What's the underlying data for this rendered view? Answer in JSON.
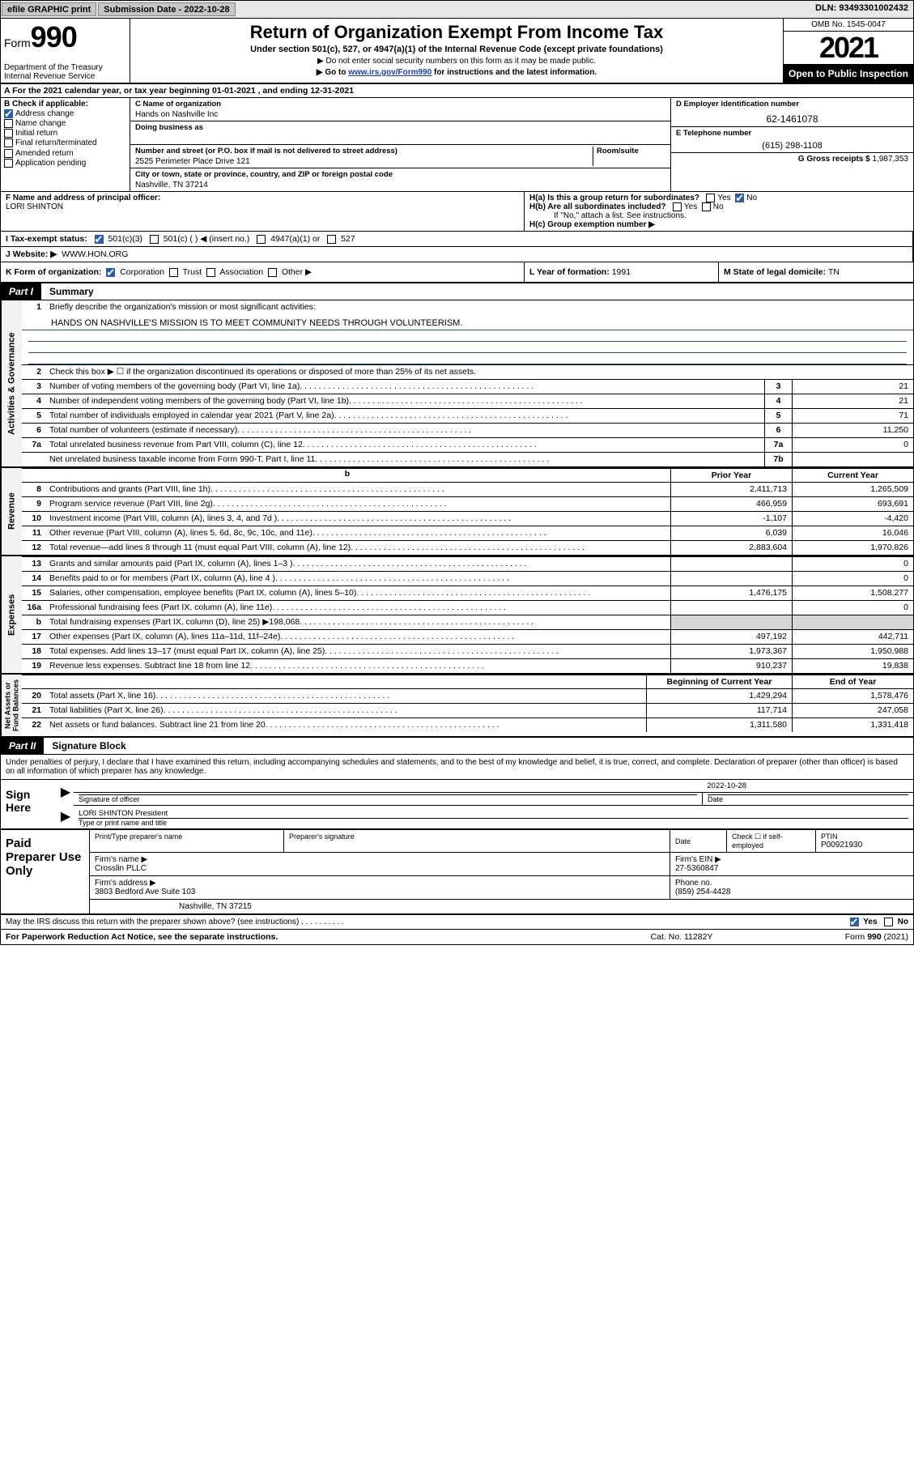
{
  "topstrip": {
    "efile": "efile GRAPHIC print",
    "subdate_lbl": "Submission Date - ",
    "subdate": "2022-10-28",
    "dln_lbl": "DLN: ",
    "dln": "93493301002432"
  },
  "header": {
    "form_word": "Form",
    "form_num": "990",
    "dept": "Department of the Treasury\nInternal Revenue Service",
    "title": "Return of Organization Exempt From Income Tax",
    "subtitle": "Under section 501(c), 527, or 4947(a)(1) of the Internal Revenue Code (except private foundations)",
    "instr1": "▶ Do not enter social security numbers on this form as it may be made public.",
    "instr2_pre": "▶ Go to ",
    "instr2_link": "www.irs.gov/Form990",
    "instr2_post": " for instructions and the latest information.",
    "omb": "OMB No. 1545-0047",
    "year": "2021",
    "otp": "Open to Public Inspection"
  },
  "A": {
    "text": "A For the 2021 calendar year, or tax year beginning 01-01-2021   , and ending 12-31-2021"
  },
  "B": {
    "hdr": "B Check if applicable:",
    "items": [
      {
        "lbl": "Address change",
        "chk": true
      },
      {
        "lbl": "Name change",
        "chk": false
      },
      {
        "lbl": "Initial return",
        "chk": false
      },
      {
        "lbl": "Final return/terminated",
        "chk": false
      },
      {
        "lbl": "Amended return",
        "chk": false
      },
      {
        "lbl": "Application pending",
        "chk": false
      }
    ]
  },
  "C": {
    "name_lbl": "C Name of organization",
    "name": "Hands on Nashville Inc",
    "dba_lbl": "Doing business as",
    "addr_lbl": "Number and street (or P.O. box if mail is not delivered to street address)",
    "room_lbl": "Room/suite",
    "addr": "2525 Perimeter Place Drive 121",
    "city_lbl": "City or town, state or province, country, and ZIP or foreign postal code",
    "city": "Nashville, TN  37214"
  },
  "D": {
    "lbl": "D Employer identification number",
    "val": "62-1461078"
  },
  "E": {
    "lbl": "E Telephone number",
    "val": "(615) 298-1108"
  },
  "G": {
    "lbl": "G Gross receipts $",
    "val": "1,987,353"
  },
  "F": {
    "lbl": "F  Name and address of principal officer:",
    "val": "LORI SHINTON"
  },
  "H": {
    "a": "H(a)  Is this a group return for subordinates?",
    "a_yes": "Yes",
    "a_no": "No",
    "b": "H(b)  Are all subordinates included?",
    "b_note": "If \"No,\" attach a list. See instructions.",
    "c": "H(c)  Group exemption number ▶"
  },
  "I": {
    "lbl": "I  Tax-exempt status:",
    "opts": [
      "501(c)(3)",
      "501(c) (   ) ◀ (insert no.)",
      "4947(a)(1) or",
      "527"
    ]
  },
  "J": {
    "lbl": "J  Website: ▶",
    "val": "WWW.HON.ORG"
  },
  "K": {
    "lbl": "K Form of organization:",
    "opts": [
      "Corporation",
      "Trust",
      "Association",
      "Other ▶"
    ]
  },
  "L": {
    "lbl": "L Year of formation: ",
    "val": "1991"
  },
  "M": {
    "lbl": "M State of legal domicile: ",
    "val": "TN"
  },
  "part1": {
    "tag": "Part I",
    "title": "Summary",
    "q1": "Briefly describe the organization's mission or most significant activities:",
    "mission": "HANDS ON NASHVILLE'S MISSION IS TO MEET COMMUNITY NEEDS THROUGH VOLUNTEERISM.",
    "q2": "Check this box ▶ ☐  if the organization discontinued its operations or disposed of more than 25% of its net assets.",
    "gov_rows": [
      {
        "n": "3",
        "t": "Number of voting members of the governing body (Part VI, line 1a)",
        "nn": "3",
        "v": "21"
      },
      {
        "n": "4",
        "t": "Number of independent voting members of the governing body (Part VI, line 1b)",
        "nn": "4",
        "v": "21"
      },
      {
        "n": "5",
        "t": "Total number of individuals employed in calendar year 2021 (Part V, line 2a)",
        "nn": "5",
        "v": "71"
      },
      {
        "n": "6",
        "t": "Total number of volunteers (estimate if necessary)",
        "nn": "6",
        "v": "11,250"
      },
      {
        "n": "7a",
        "t": "Total unrelated business revenue from Part VIII, column (C), line 12",
        "nn": "7a",
        "v": "0"
      },
      {
        "n": "",
        "t": "Net unrelated business taxable income from Form 990-T, Part I, line 11",
        "nn": "7b",
        "v": ""
      }
    ],
    "col_hdr_b": "b",
    "col_prior": "Prior Year",
    "col_curr": "Current Year",
    "rev_rows": [
      {
        "n": "8",
        "t": "Contributions and grants (Part VIII, line 1h)",
        "p": "2,411,713",
        "c": "1,265,509"
      },
      {
        "n": "9",
        "t": "Program service revenue (Part VIII, line 2g)",
        "p": "466,959",
        "c": "693,691"
      },
      {
        "n": "10",
        "t": "Investment income (Part VIII, column (A), lines 3, 4, and 7d )",
        "p": "-1,107",
        "c": "-4,420"
      },
      {
        "n": "11",
        "t": "Other revenue (Part VIII, column (A), lines 5, 6d, 8c, 9c, 10c, and 11e)",
        "p": "6,039",
        "c": "16,046"
      },
      {
        "n": "12",
        "t": "Total revenue—add lines 8 through 11 (must equal Part VIII, column (A), line 12)",
        "p": "2,883,604",
        "c": "1,970,826"
      }
    ],
    "exp_rows": [
      {
        "n": "13",
        "t": "Grants and similar amounts paid (Part IX, column (A), lines 1–3 )",
        "p": "",
        "c": "0"
      },
      {
        "n": "14",
        "t": "Benefits paid to or for members (Part IX, column (A), line 4 )",
        "p": "",
        "c": "0"
      },
      {
        "n": "15",
        "t": "Salaries, other compensation, employee benefits (Part IX, column (A), lines 5–10)",
        "p": "1,476,175",
        "c": "1,508,277"
      },
      {
        "n": "16a",
        "t": "Professional fundraising fees (Part IX, column (A), line 11e)",
        "p": "",
        "c": "0"
      },
      {
        "n": "b",
        "t": "Total fundraising expenses (Part IX, column (D), line 25) ▶198,068",
        "p": "GRAY",
        "c": "GRAY"
      },
      {
        "n": "17",
        "t": "Other expenses (Part IX, column (A), lines 11a–11d, 11f–24e)",
        "p": "497,192",
        "c": "442,711"
      },
      {
        "n": "18",
        "t": "Total expenses. Add lines 13–17 (must equal Part IX, column (A), line 25)",
        "p": "1,973,367",
        "c": "1,950,988"
      },
      {
        "n": "19",
        "t": "Revenue less expenses. Subtract line 18 from line 12",
        "p": "910,237",
        "c": "19,838"
      }
    ],
    "na_hdr1": "Beginning of Current Year",
    "na_hdr2": "End of Year",
    "na_rows": [
      {
        "n": "20",
        "t": "Total assets (Part X, line 16)",
        "p": "1,429,294",
        "c": "1,578,476"
      },
      {
        "n": "21",
        "t": "Total liabilities (Part X, line 26)",
        "p": "117,714",
        "c": "247,058"
      },
      {
        "n": "22",
        "t": "Net assets or fund balances. Subtract line 21 from line 20",
        "p": "1,311,580",
        "c": "1,331,418"
      }
    ],
    "vtab_gov": "Activities & Governance",
    "vtab_rev": "Revenue",
    "vtab_exp": "Expenses",
    "vtab_na": "Net Assets or\nFund Balances"
  },
  "part2": {
    "tag": "Part II",
    "title": "Signature Block",
    "perjury": "Under penalties of perjury, I declare that I have examined this return, including accompanying schedules and statements, and to the best of my knowledge and belief, it is true, correct, and complete. Declaration of preparer (other than officer) is based on all information of which preparer has any knowledge.",
    "sign_here": "Sign Here",
    "sig_of_off": "Signature of officer",
    "date_lbl": "Date",
    "date": "2022-10-28",
    "typed_name": "LORI SHINTON  President",
    "typed_lbl": "Type or print name and title"
  },
  "prep": {
    "lab": "Paid Preparer Use Only",
    "r1": {
      "a": "Print/Type preparer's name",
      "b": "Preparer's signature",
      "c": "Date",
      "d_lbl": "Check ☐ if self-employed",
      "e_lbl": "PTIN",
      "e": "P00921930"
    },
    "r2": {
      "a_lbl": "Firm's name    ▶",
      "a": "Crosslin PLLC",
      "b_lbl": "Firm's EIN ▶",
      "b": "27-5360847"
    },
    "r3": {
      "a_lbl": "Firm's address ▶",
      "a": "3803 Bedford Ave Suite 103",
      "b_lbl": "Phone no.",
      "b": "(859) 254-4428"
    },
    "r4": {
      "a": "Nashville, TN  37215"
    }
  },
  "footer": {
    "q": "May the IRS discuss this return with the preparer shown above? (see instructions)",
    "yes": "Yes",
    "no": "No"
  },
  "last": {
    "a": "For Paperwork Reduction Act Notice, see the separate instructions.",
    "b": "Cat. No. 11282Y",
    "c": "Form 990 (2021)"
  }
}
